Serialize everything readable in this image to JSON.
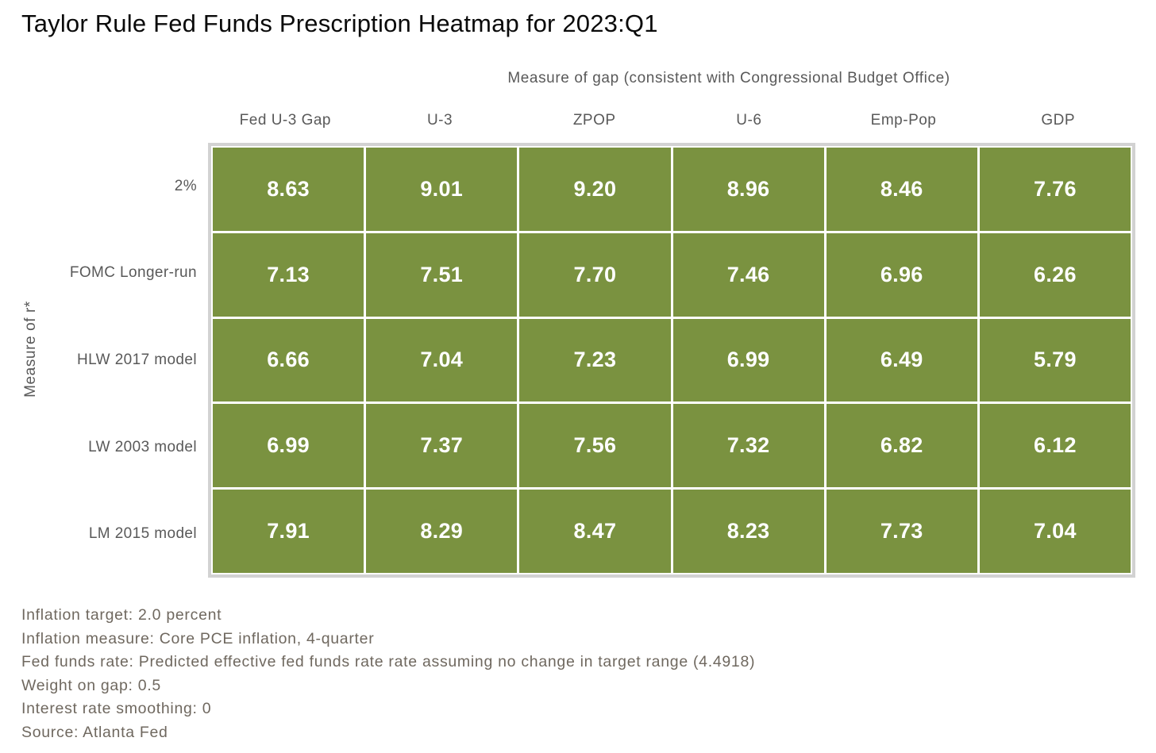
{
  "title": "Taylor Rule Fed Funds Prescription Heatmap for 2023:Q1",
  "chart_data": {
    "type": "heatmap",
    "title": "Taylor Rule Fed Funds Prescription Heatmap for 2023:Q1",
    "x_axis_label": "Measure of gap (consistent with Congressional Budget Office)",
    "y_axis_label": "Measure of r*",
    "columns": [
      "Fed U-3 Gap",
      "U-3",
      "ZPOP",
      "U-6",
      "Emp-Pop",
      "GDP"
    ],
    "rows": [
      "2%",
      "FOMC Longer-run",
      "HLW 2017 model",
      "LW 2003 model",
      "LM 2015 model"
    ],
    "values": [
      [
        8.63,
        9.01,
        9.2,
        8.96,
        8.46,
        7.76
      ],
      [
        7.13,
        7.51,
        7.7,
        7.46,
        6.96,
        6.26
      ],
      [
        6.66,
        7.04,
        7.23,
        6.99,
        6.49,
        5.79
      ],
      [
        6.99,
        7.37,
        7.56,
        7.32,
        6.82,
        6.12
      ],
      [
        7.91,
        8.29,
        8.47,
        8.23,
        7.73,
        7.04
      ]
    ],
    "value_decimals": 2,
    "cell_color": "#7a9240",
    "value_text_color": "#ffffff",
    "grid_line_color": "#ffffff",
    "frame_color": "#d2d2d2",
    "legend": "none"
  },
  "footnotes": [
    "Inflation target: 2.0 percent",
    "Inflation measure: Core PCE inflation, 4-quarter",
    "Fed funds rate: Predicted effective fed funds rate rate assuming no change in target range (4.4918)",
    "Weight on gap: 0.5",
    "Interest rate smoothing: 0",
    "Source: Atlanta Fed"
  ]
}
